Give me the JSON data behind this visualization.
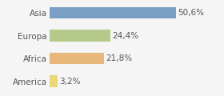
{
  "categories": [
    "America",
    "Africa",
    "Europa",
    "Asia"
  ],
  "values": [
    3.2,
    21.8,
    24.4,
    50.6
  ],
  "labels": [
    "3,2%",
    "21,8%",
    "24,4%",
    "50,6%"
  ],
  "bar_colors": [
    "#e8d87a",
    "#e8b87a",
    "#b5c98a",
    "#7a9fc4"
  ],
  "background_color": "#f5f5f5",
  "xlim": [
    0,
    68
  ],
  "label_fontsize": 7.5,
  "tick_fontsize": 7.5,
  "bar_height": 0.52
}
